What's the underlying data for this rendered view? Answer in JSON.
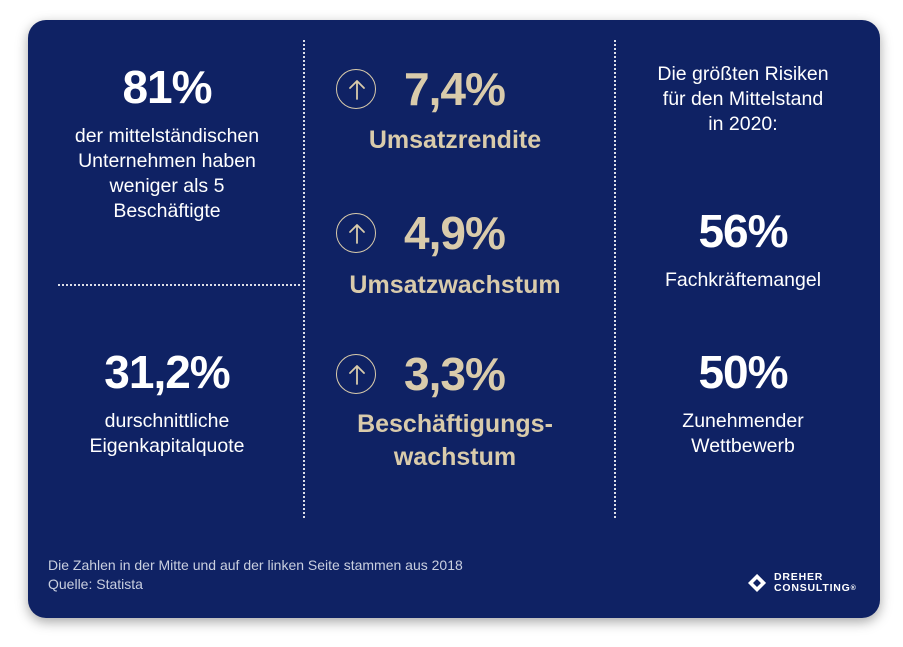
{
  "left": {
    "top_value": "81%",
    "top_lines": [
      "der mittelständischen",
      "Unternehmen haben",
      "weniger als 5",
      "Beschäftigte"
    ],
    "bottom_value": "31,2%",
    "bottom_lines": [
      "durschnittliche",
      "Eigenkapitalquote"
    ]
  },
  "middle": {
    "stats": [
      {
        "value": "7,4%",
        "label_lines": [
          "Umsatzrendite"
        ],
        "icon": "arrow-up-circle-icon"
      },
      {
        "value": "4,9%",
        "label_lines": [
          "Umsatzwachstum"
        ],
        "icon": "arrow-up-circle-icon"
      },
      {
        "value": "3,3%",
        "label_lines": [
          "Beschäftigungs-",
          "wachstum"
        ],
        "icon": "arrow-up-circle-icon"
      }
    ]
  },
  "right": {
    "heading_lines": [
      "Die größten Risiken",
      "für den Mittelstand",
      "in 2020:"
    ],
    "risks": [
      {
        "value": "56%",
        "label_lines": [
          "Fachkräftemangel"
        ]
      },
      {
        "value": "50%",
        "label_lines": [
          "Zunehmender",
          "Wettbewerb"
        ]
      }
    ]
  },
  "footer": {
    "note": "Die Zahlen in der Mitte und auf der linken Seite stammen aus 2018",
    "source": "Quelle: Statista"
  },
  "logo": {
    "line1": "DREHER",
    "line2": "CONSULTING",
    "mark": "®"
  },
  "colors": {
    "background": "#0f2264",
    "gold": "#d9cbab",
    "white": "#ffffff"
  }
}
